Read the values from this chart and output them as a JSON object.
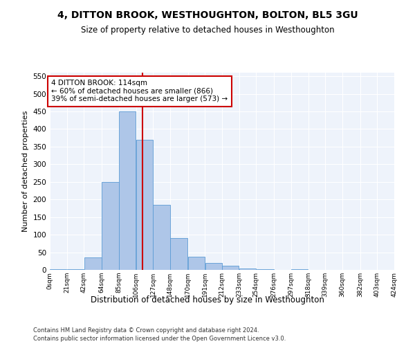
{
  "title1": "4, DITTON BROOK, WESTHOUGHTON, BOLTON, BL5 3GU",
  "title2": "Size of property relative to detached houses in Westhoughton",
  "xlabel": "Distribution of detached houses by size in Westhoughton",
  "ylabel": "Number of detached properties",
  "footnote1": "Contains HM Land Registry data © Crown copyright and database right 2024.",
  "footnote2": "Contains public sector information licensed under the Open Government Licence v3.0.",
  "property_label": "4 DITTON BROOK: 114sqm",
  "annotation_line1": "← 60% of detached houses are smaller (866)",
  "annotation_line2": "39% of semi-detached houses are larger (573) →",
  "bar_edges": [
    0,
    21,
    42,
    64,
    85,
    106,
    127,
    148,
    170,
    191,
    212,
    233,
    254,
    276,
    297,
    318,
    339,
    360,
    382,
    403,
    424
  ],
  "bar_heights": [
    2,
    2,
    35,
    250,
    450,
    370,
    185,
    90,
    38,
    20,
    12,
    3,
    1,
    0,
    1,
    0,
    0,
    0,
    0,
    0
  ],
  "bar_color": "#aec6e8",
  "bar_edge_color": "#5b9bd5",
  "vline_color": "#cc0000",
  "vline_x": 114,
  "annotation_box_color": "#cc0000",
  "background_color": "#eef3fb",
  "ylim": [
    0,
    560
  ],
  "yticks": [
    0,
    50,
    100,
    150,
    200,
    250,
    300,
    350,
    400,
    450,
    500,
    550
  ],
  "x_tick_labels": [
    "0sqm",
    "21sqm",
    "42sqm",
    "64sqm",
    "85sqm",
    "106sqm",
    "127sqm",
    "148sqm",
    "170sqm",
    "191sqm",
    "212sqm",
    "233sqm",
    "254sqm",
    "276sqm",
    "297sqm",
    "318sqm",
    "339sqm",
    "360sqm",
    "382sqm",
    "403sqm",
    "424sqm"
  ]
}
